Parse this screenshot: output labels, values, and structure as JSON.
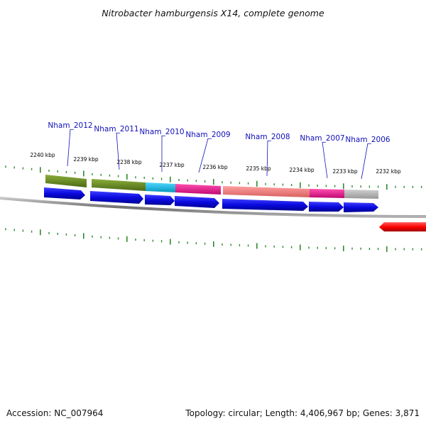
{
  "title": "Nitrobacter hamburgensis X14, complete genome",
  "footer": {
    "accession": "Accession: NC_007964",
    "summary": "Topology: circular; Length: 4,406,967 bp; Genes: 3,871"
  },
  "ticks": [
    "2240 kbp",
    "2239 kbp",
    "2238 kbp",
    "2237 kbp",
    "2236 kbp",
    "2235 kbp",
    "2234 kbp",
    "2233 kbp",
    "2232 kbp"
  ],
  "genes": [
    "Nham_2012",
    "Nham_2011",
    "Nham_2010",
    "Nham_2009",
    "Nham_2008",
    "Nham_2007",
    "Nham_2006"
  ],
  "colors": {
    "cds": "#0a0ae0",
    "reverse_cds": "#ff0000",
    "backbone": "#8a8a8a",
    "tick": "#2e8b2e",
    "gene_label": "#1010b8",
    "cog_olive": "#6b8e23",
    "cog_cyan": "#10c0e8",
    "cog_magenta": "#f01890",
    "cog_salmon": "#f08080",
    "cog_grey": "#b8b8b8"
  }
}
